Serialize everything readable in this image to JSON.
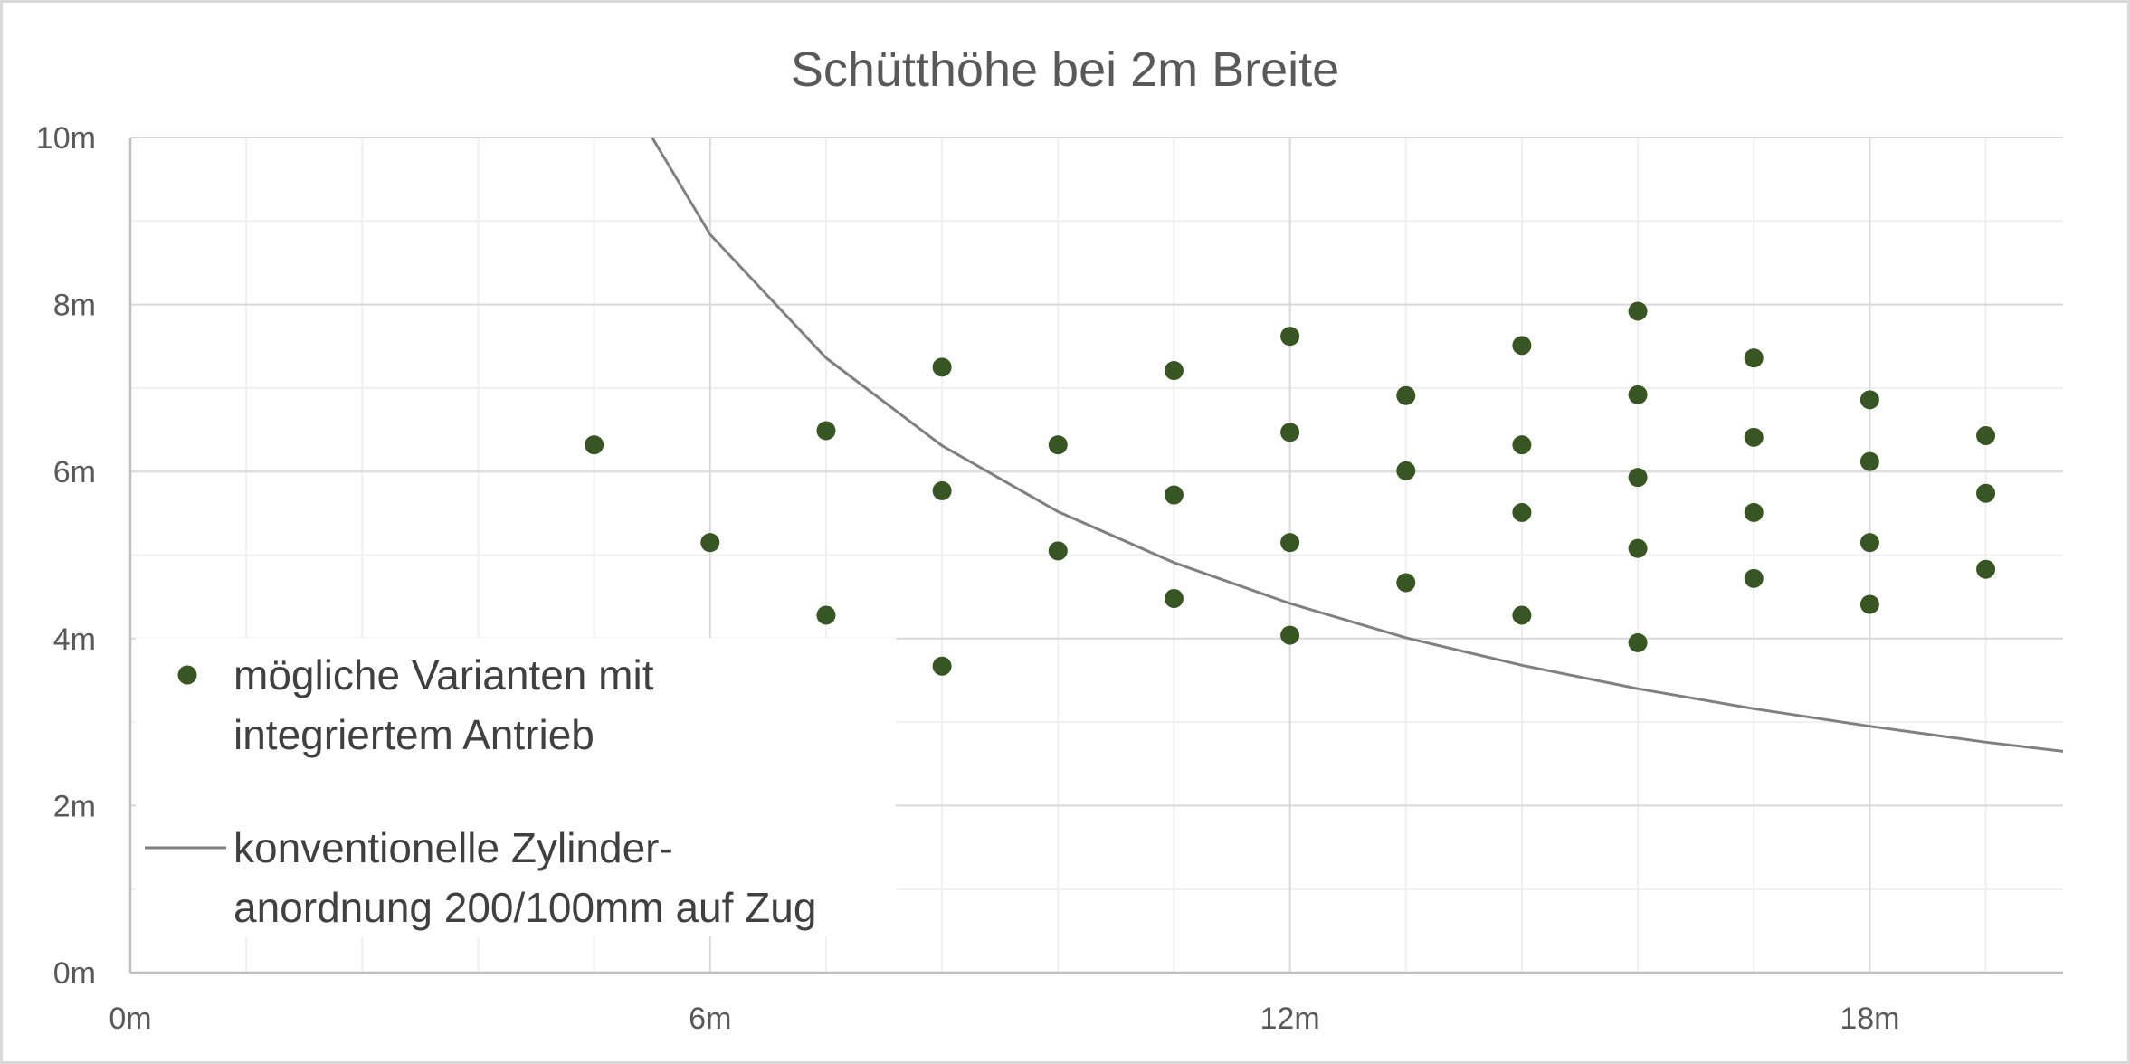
{
  "chart_data": {
    "type": "scatter",
    "title": "Schütthöhe bei 2m Breite",
    "xlabel": "",
    "ylabel": "",
    "xlim": [
      0,
      20
    ],
    "ylim": [
      0,
      10
    ],
    "x_ticks": [
      {
        "value": 0,
        "label": "0m"
      },
      {
        "value": 6,
        "label": "6m"
      },
      {
        "value": 12,
        "label": "12m"
      },
      {
        "value": 18,
        "label": "18m"
      }
    ],
    "y_ticks": [
      {
        "value": 0,
        "label": "0m"
      },
      {
        "value": 2,
        "label": "2m"
      },
      {
        "value": 4,
        "label": "4m"
      },
      {
        "value": 6,
        "label": "6m"
      },
      {
        "value": 8,
        "label": "8m"
      },
      {
        "value": 10,
        "label": "10m"
      }
    ],
    "grid": true,
    "x_minor_step": 1.2,
    "y_minor_step": 1,
    "x_major_gridlines": [
      6,
      12,
      18
    ],
    "legend_position": "left",
    "series": [
      {
        "name": "mögliche Varianten mit integriertem Antrieb",
        "legend_lines": [
          "mögliche Varianten mit",
          "integriertem Antrieb"
        ],
        "kind": "scatter",
        "color": "#375623",
        "points": [
          {
            "x": 4.8,
            "y": 6.32
          },
          {
            "x": 6.0,
            "y": 5.15
          },
          {
            "x": 7.2,
            "y": 6.49
          },
          {
            "x": 7.2,
            "y": 4.28
          },
          {
            "x": 8.4,
            "y": 7.25
          },
          {
            "x": 8.4,
            "y": 5.77
          },
          {
            "x": 8.4,
            "y": 3.67
          },
          {
            "x": 9.6,
            "y": 6.32
          },
          {
            "x": 9.6,
            "y": 5.05
          },
          {
            "x": 10.8,
            "y": 7.21
          },
          {
            "x": 10.8,
            "y": 5.72
          },
          {
            "x": 10.8,
            "y": 4.48
          },
          {
            "x": 12.0,
            "y": 7.62
          },
          {
            "x": 12.0,
            "y": 6.47
          },
          {
            "x": 12.0,
            "y": 5.15
          },
          {
            "x": 12.0,
            "y": 4.04
          },
          {
            "x": 13.2,
            "y": 6.91
          },
          {
            "x": 13.2,
            "y": 6.01
          },
          {
            "x": 13.2,
            "y": 4.67
          },
          {
            "x": 14.4,
            "y": 7.51
          },
          {
            "x": 14.4,
            "y": 6.32
          },
          {
            "x": 14.4,
            "y": 5.51
          },
          {
            "x": 14.4,
            "y": 4.28
          },
          {
            "x": 15.6,
            "y": 7.92
          },
          {
            "x": 15.6,
            "y": 6.92
          },
          {
            "x": 15.6,
            "y": 5.93
          },
          {
            "x": 15.6,
            "y": 5.08
          },
          {
            "x": 15.6,
            "y": 3.95
          },
          {
            "x": 16.8,
            "y": 7.36
          },
          {
            "x": 16.8,
            "y": 6.41
          },
          {
            "x": 16.8,
            "y": 5.51
          },
          {
            "x": 16.8,
            "y": 4.72
          },
          {
            "x": 18.0,
            "y": 6.86
          },
          {
            "x": 18.0,
            "y": 6.12
          },
          {
            "x": 18.0,
            "y": 5.15
          },
          {
            "x": 18.0,
            "y": 4.41
          },
          {
            "x": 19.2,
            "y": 6.43
          },
          {
            "x": 19.2,
            "y": 5.74
          },
          {
            "x": 19.2,
            "y": 4.83
          }
        ]
      },
      {
        "name": "konventionelle Zylinder-anordnung 200/100mm auf Zug",
        "legend_lines": [
          "konventionelle Zylinder-",
          "anordnung 200/100mm auf Zug"
        ],
        "kind": "line",
        "color": "#808080",
        "points": [
          {
            "x": 5.4,
            "y": 10.0
          },
          {
            "x": 6.0,
            "y": 8.84
          },
          {
            "x": 7.2,
            "y": 7.36
          },
          {
            "x": 8.4,
            "y": 6.31
          },
          {
            "x": 9.6,
            "y": 5.52
          },
          {
            "x": 10.8,
            "y": 4.91
          },
          {
            "x": 12.0,
            "y": 4.42
          },
          {
            "x": 13.2,
            "y": 4.01
          },
          {
            "x": 14.4,
            "y": 3.68
          },
          {
            "x": 15.6,
            "y": 3.4
          },
          {
            "x": 16.8,
            "y": 3.16
          },
          {
            "x": 18.0,
            "y": 2.95
          },
          {
            "x": 19.2,
            "y": 2.76
          },
          {
            "x": 20.0,
            "y": 2.65
          }
        ]
      }
    ]
  }
}
